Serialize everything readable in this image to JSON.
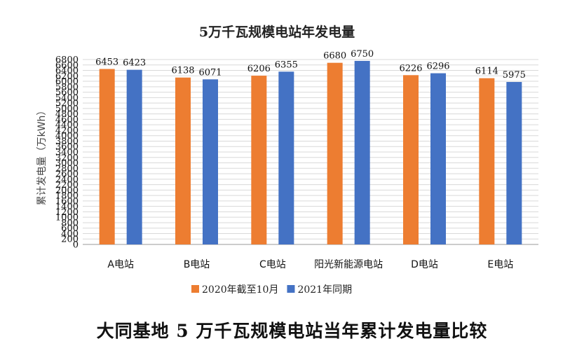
{
  "chart_data": {
    "type": "bar",
    "title": "5万千瓦规模电站年发电量",
    "ylabel": "累计发电量（万kWh）",
    "xlabel": "",
    "ylim": [
      0,
      6800
    ],
    "ytick_step": 200,
    "grid": true,
    "legend_position": "bottom",
    "categories": [
      "A电站",
      "B电站",
      "C电站",
      "阳光新能源电站",
      "D电站",
      "E电站"
    ],
    "series": [
      {
        "name": "2020年截至10月",
        "color": "#ED7D31",
        "values": [
          6453,
          6138,
          6206,
          6680,
          6226,
          6114
        ]
      },
      {
        "name": "2021年同期",
        "color": "#4472C4",
        "values": [
          6423,
          6071,
          6355,
          6750,
          6296,
          5975
        ]
      }
    ]
  },
  "caption": "大同基地 5 万千瓦规模电站当年累计发电量比较"
}
